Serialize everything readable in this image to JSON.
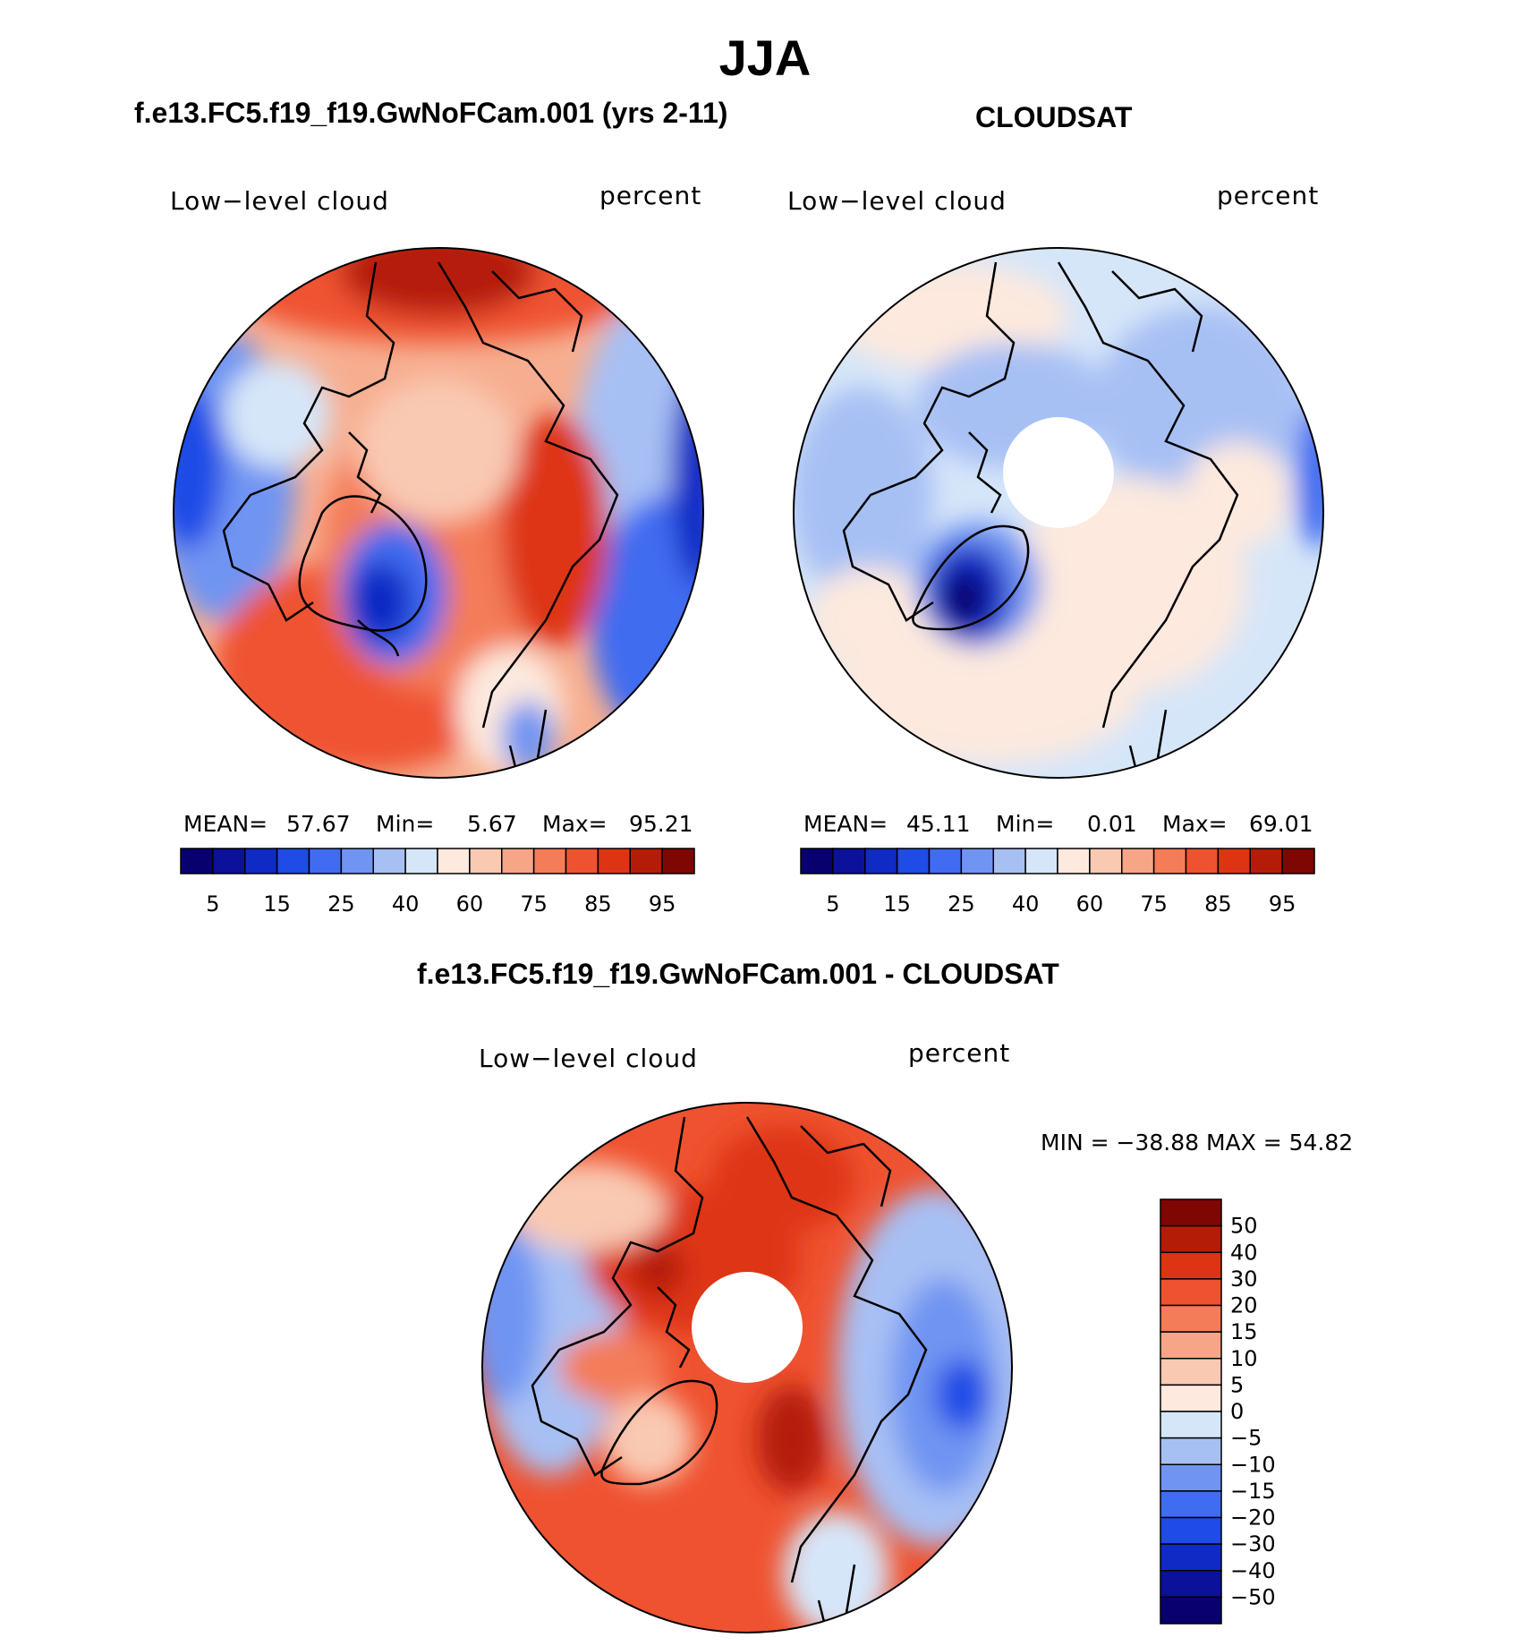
{
  "figure": {
    "title": "JJA"
  },
  "panels": {
    "model": {
      "title": "f.e13.FC5.f19_f19.GwNoFCam.001 (yrs 2-11)",
      "variable": "Low−level cloud",
      "units": "percent",
      "mean_label": "MEAN=",
      "mean_value": "57.67",
      "min_label": "Min=",
      "min_value": "5.67",
      "max_label": "Max=",
      "max_value": "95.21"
    },
    "obs": {
      "title": "CLOUDSAT",
      "variable": "Low−level cloud",
      "units": "percent",
      "mean_label": "MEAN=",
      "mean_value": "45.11",
      "min_label": "Min=",
      "min_value": "0.01",
      "max_label": "Max=",
      "max_value": "69.01"
    },
    "diff": {
      "title": "f.e13.FC5.f19_f19.GwNoFCam.001 - CLOUDSAT",
      "variable": "Low−level cloud",
      "units": "percent",
      "minmax_text": "MIN =  −38.88  MAX =    54.82"
    }
  },
  "colorbars": {
    "abs": {
      "tick_labels": [
        "5",
        "15",
        "25",
        "40",
        "60",
        "75",
        "85",
        "95"
      ],
      "colors": [
        "#08006e",
        "#0b119a",
        "#0f2ac5",
        "#1f4be6",
        "#3f6cf0",
        "#6f94f2",
        "#a7c0f4",
        "#d6e6f9",
        "#fde9de",
        "#f9c9b2",
        "#f6a587",
        "#f47c58",
        "#ef5230",
        "#de3414",
        "#b51c08",
        "#7e0704"
      ]
    },
    "diff": {
      "tick_labels": [
        "50",
        "40",
        "30",
        "20",
        "15",
        "10",
        "5",
        "0",
        "−5",
        "−10",
        "−15",
        "−20",
        "−30",
        "−40",
        "−50"
      ],
      "colors": [
        "#7e0704",
        "#b51c08",
        "#de3414",
        "#ef5230",
        "#f47c58",
        "#f6a587",
        "#f9c9b2",
        "#fde9de",
        "#d6e6f9",
        "#a7c0f4",
        "#6f94f2",
        "#3f6cf0",
        "#1f4be6",
        "#0f2ac5",
        "#0b119a",
        "#08006e"
      ]
    }
  }
}
